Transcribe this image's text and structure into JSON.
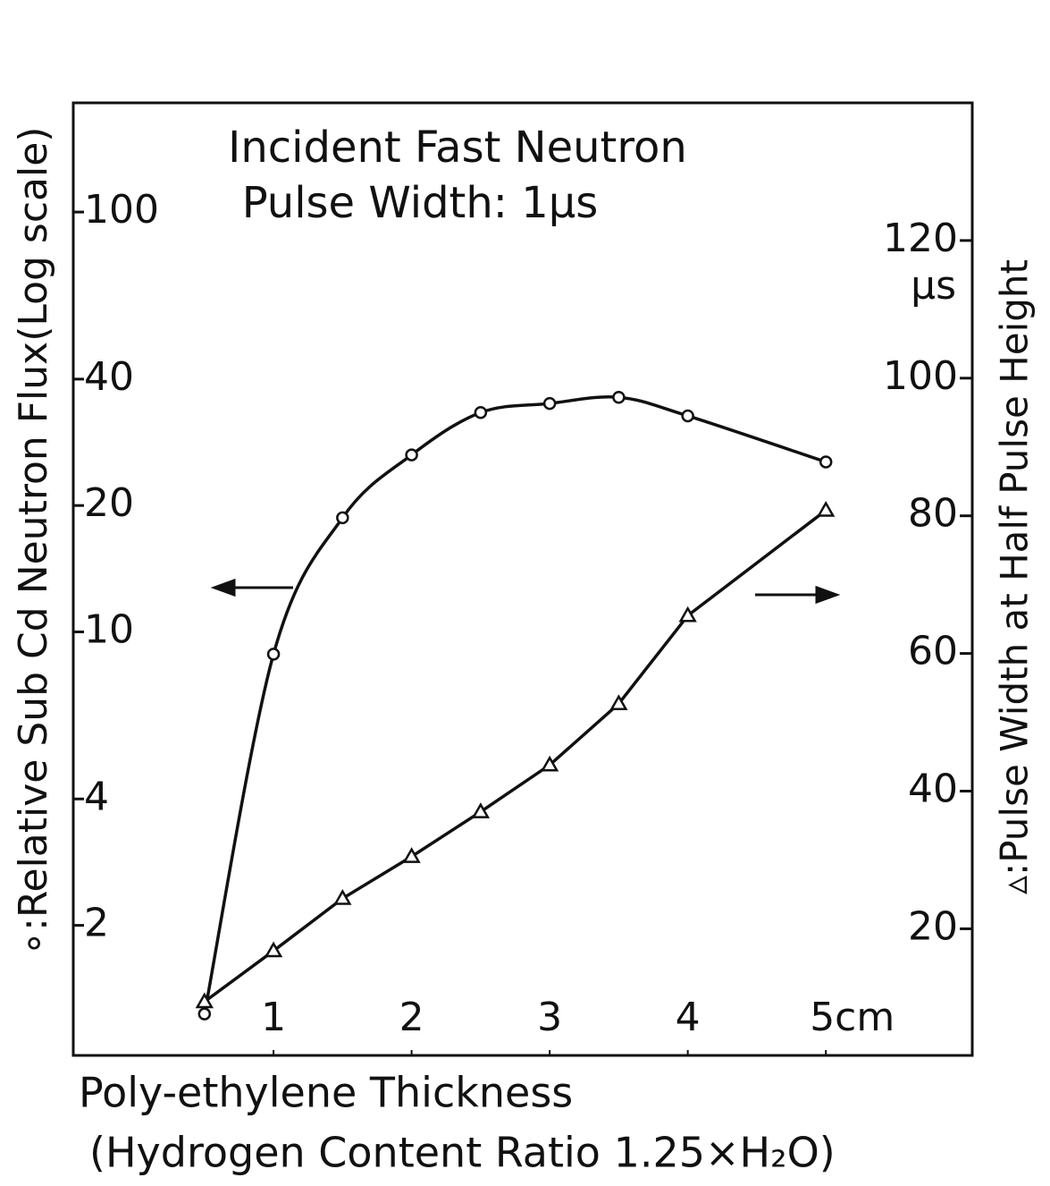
{
  "chart_data": {
    "type": "line",
    "title": "Incident Fast Neutron",
    "subtitle": "Pulse Width: 1μs",
    "ylabel": "∘:Relative Sub Cd Neutron Flux(Log scale)",
    "y2label": "▵:Pulse Width at Half Pulse Height",
    "y2unit": "μs",
    "xlabel": [
      "Poly-ethylene  Thickness",
      "(Hydrogen  Content  Ratio 1.25×H₂O)"
    ],
    "x": [
      0.5,
      1,
      1.5,
      2,
      2.5,
      3,
      3.5,
      4,
      5
    ],
    "series": [
      {
        "name": "Relative Sub Cd Neutron Flux",
        "marker": "circle",
        "color": "#111111",
        "axis": "y",
        "smooth": true,
        "values": [
          1.23,
          8.85,
          18.7,
          26.4,
          33.3,
          35.0,
          36.2,
          32.7,
          25.4
        ]
      },
      {
        "name": "Pulse Width at Half Pulse Height",
        "marker": "triangle",
        "color": "#111111",
        "axis": "y2",
        "smooth": false,
        "values": [
          9.4,
          16.8,
          24.4,
          30.5,
          37.0,
          43.8,
          52.7,
          65.5,
          80.8
        ]
      }
    ],
    "xlim": [
      -0.45,
      6.06
    ],
    "xticks": [
      1,
      2,
      3,
      4,
      {
        "value": 5,
        "label": "5cm"
      }
    ],
    "ylim": [
      0.98,
      182
    ],
    "ylog": true,
    "yticks": [
      2,
      4,
      10,
      20,
      40,
      100
    ],
    "y2lim": [
      1.6,
      140
    ],
    "y2ticks": [
      20,
      40,
      60,
      80,
      100,
      120
    ],
    "grid": false
  }
}
